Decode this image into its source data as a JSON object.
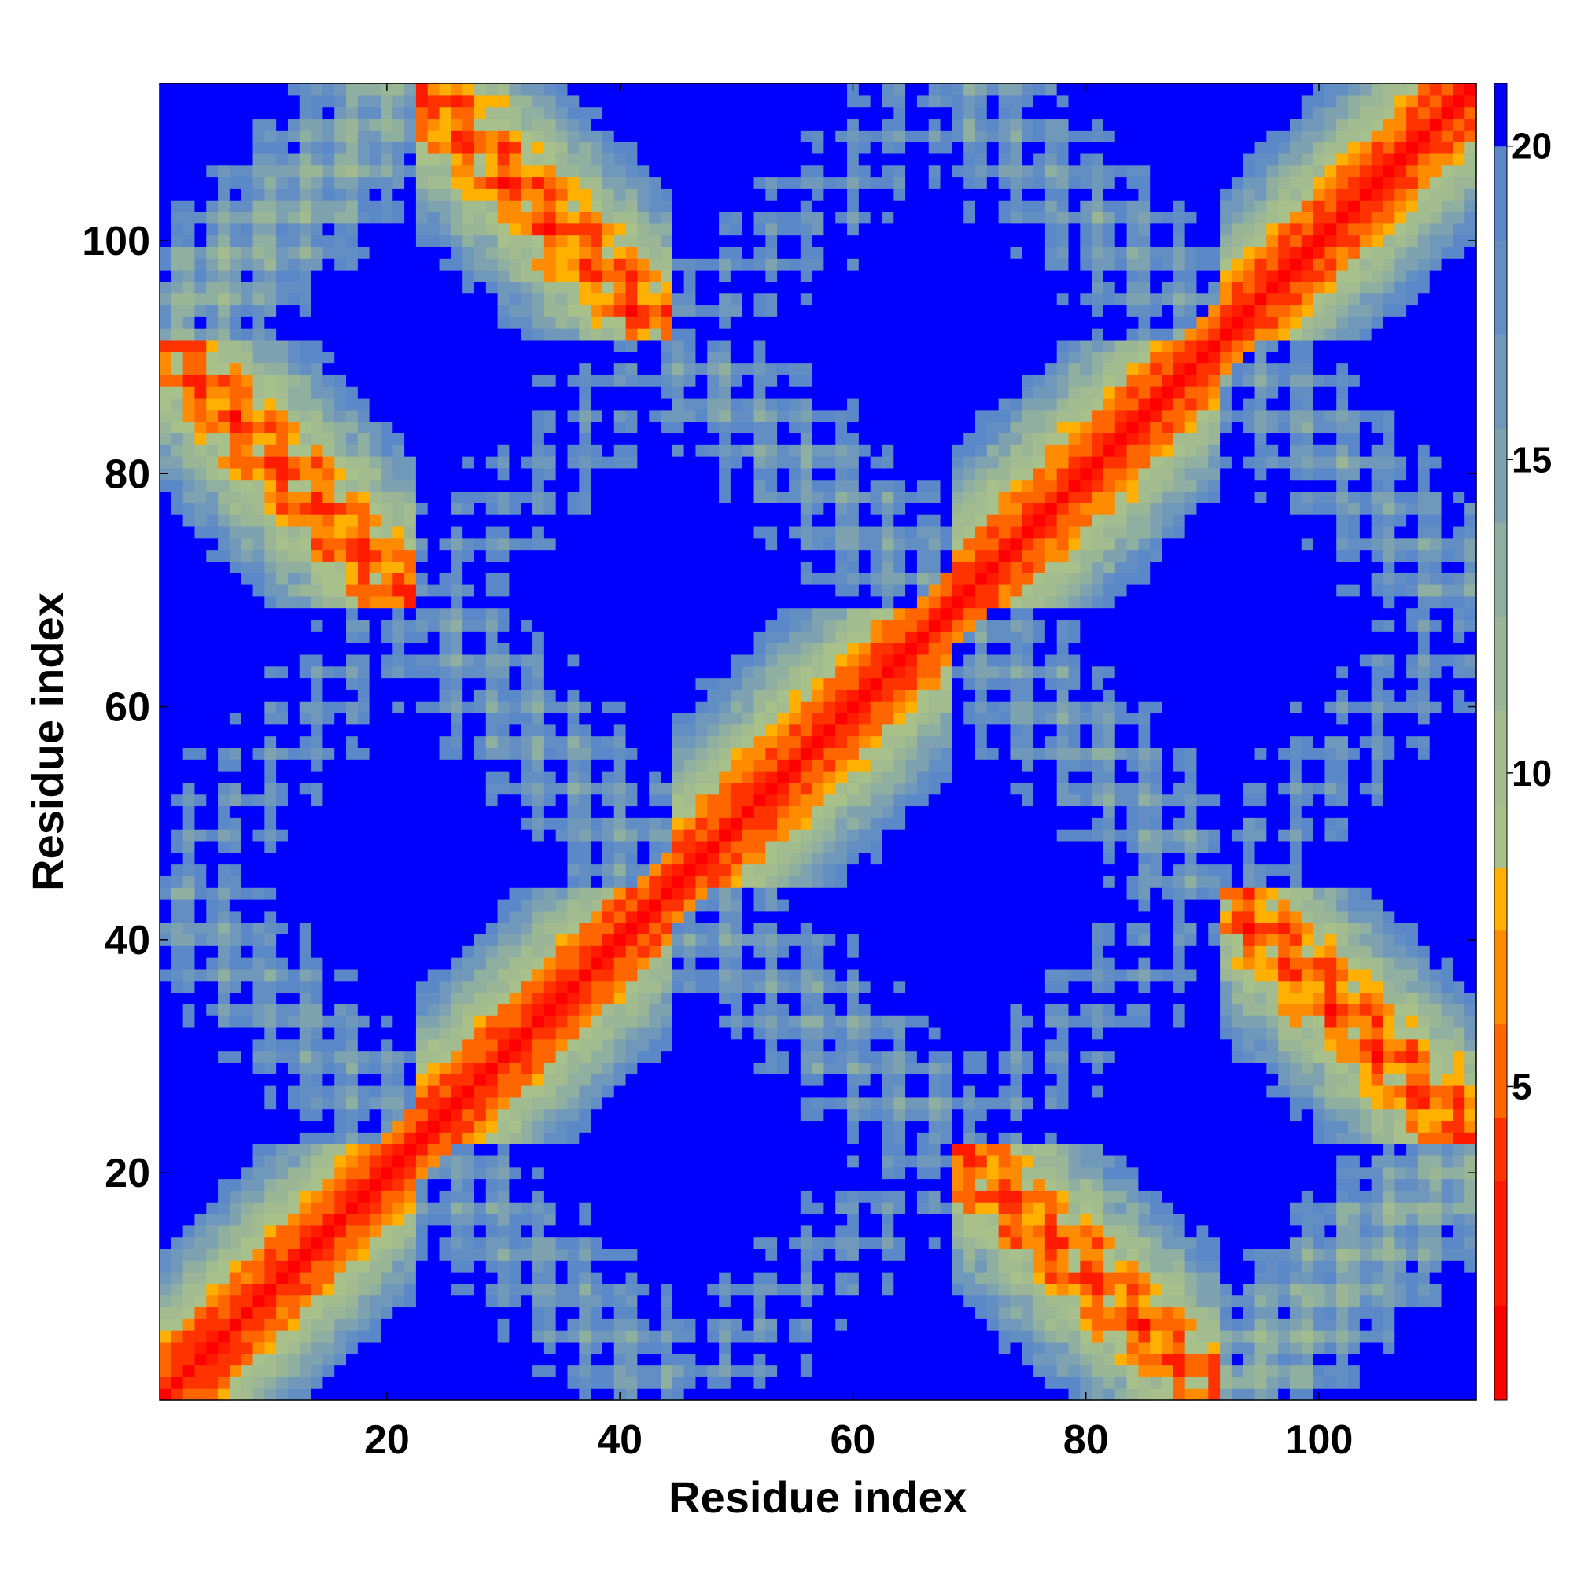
{
  "chart_data": {
    "type": "heatmap",
    "title": "",
    "xlabel": "Residue index",
    "ylabel": "Residue index",
    "n_residues": 113,
    "xlim": [
      0.5,
      113.5
    ],
    "ylim": [
      0.5,
      113.5
    ],
    "x_ticks": [
      20,
      40,
      60,
      80,
      100
    ],
    "y_ticks": [
      20,
      40,
      60,
      80,
      100
    ],
    "x_tick_labels": [
      "20",
      "40",
      "60",
      "80",
      "100"
    ],
    "y_tick_labels": [
      "20",
      "40",
      "60",
      "80",
      "100"
    ],
    "colorbar": {
      "label": "",
      "range": [
        0,
        21
      ],
      "ticks": [
        5,
        10,
        15,
        20
      ],
      "tick_labels": [
        "5",
        "10",
        "15",
        "20"
      ],
      "levels": [
        {
          "max": 1.5,
          "color": "#ff0000"
        },
        {
          "max": 3.5,
          "color": "#ff1a00"
        },
        {
          "max": 4.5,
          "color": "#ff3300"
        },
        {
          "max": 6.0,
          "color": "#ff6600"
        },
        {
          "max": 7.5,
          "color": "#ff8c00"
        },
        {
          "max": 8.5,
          "color": "#ffb000"
        },
        {
          "max": 9.5,
          "color": "#a8c08a"
        },
        {
          "max": 11.0,
          "color": "#a3bc8f"
        },
        {
          "max": 12.5,
          "color": "#9ab697"
        },
        {
          "max": 14.0,
          "color": "#8fb0a0"
        },
        {
          "max": 15.5,
          "color": "#7ea2b0"
        },
        {
          "max": 17.0,
          "color": "#6f98bb"
        },
        {
          "max": 18.5,
          "color": "#628ec4"
        },
        {
          "max": 20.0,
          "color": "#5a88c8"
        },
        {
          "max": 21.0,
          "color": "#0000ff"
        }
      ],
      "cap_color": "#0000ff"
    },
    "cell_rule": {
      "diagonal_band_max": 8.5,
      "contact_threshold": 8.0,
      "far_value": 21,
      "far_cutoff": 20.0
    },
    "structure_segments": [
      {
        "name": "",
        "start": 1,
        "end": 22
      },
      {
        "name": "",
        "start": 23,
        "end": 44
      },
      {
        "name": "",
        "start": 45,
        "end": 68
      },
      {
        "name": "",
        "start": 69,
        "end": 91
      },
      {
        "name": "",
        "start": 92,
        "end": 113
      }
    ],
    "grid": false,
    "legend": "none"
  }
}
